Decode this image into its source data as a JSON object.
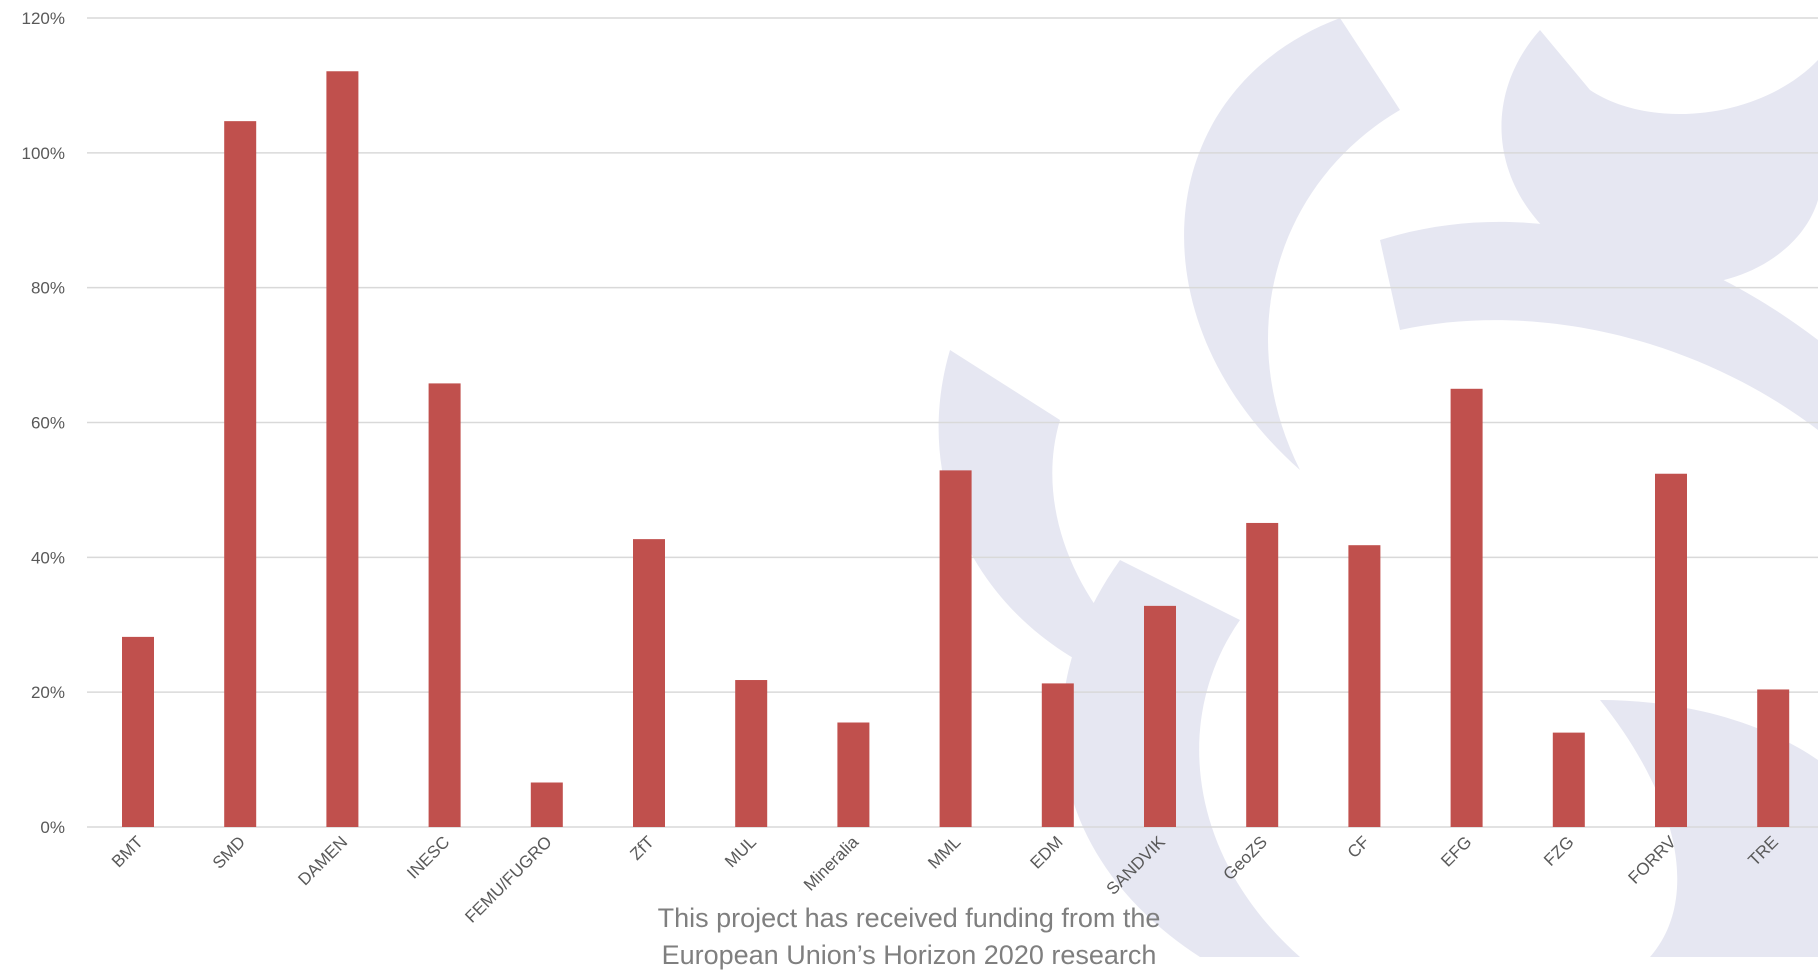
{
  "colors": {
    "bar": "#c0504d",
    "grid": "#d9d9d9",
    "axis_text": "#595959",
    "watermark": "#e6e7f2",
    "footer_text": "#7f7f7f"
  },
  "watermark": {
    "icon": "logo-watermark-icon"
  },
  "footer": {
    "line1": "This project has received funding from the",
    "line2": "European Union’s Horizon 2020 research"
  },
  "chart_data": {
    "type": "bar",
    "title": "",
    "xlabel": "",
    "ylabel": "",
    "categories": [
      "BMT",
      "SMD",
      "DAMEN",
      "INESC",
      "FEMU/FUGRO",
      "ZfT",
      "MUL",
      "Mineralia",
      "MML",
      "EDM",
      "SANDVIK",
      "GeoZS",
      "CF",
      "EFG",
      "FZG",
      "FORRV",
      "TRE"
    ],
    "values": [
      28.2,
      104.7,
      112.1,
      65.8,
      6.6,
      42.7,
      21.8,
      15.5,
      52.9,
      21.3,
      32.8,
      45.1,
      41.8,
      65.0,
      14.0,
      52.4,
      20.4
    ],
    "ylim": [
      0,
      120
    ],
    "y_ticks": [
      0,
      20,
      40,
      60,
      80,
      100,
      120
    ],
    "y_tick_format": "percent",
    "grid": true,
    "legend": "none"
  }
}
